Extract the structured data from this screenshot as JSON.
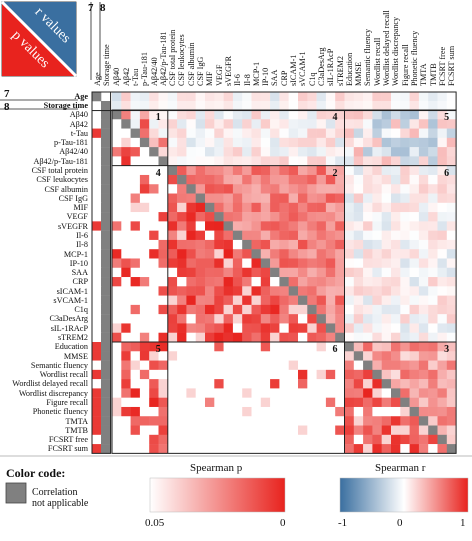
{
  "corner_legend": {
    "upper": "r values",
    "lower": "p values"
  },
  "top_markers": [
    "7",
    "8"
  ],
  "side_markers": [
    "7",
    "8"
  ],
  "top_fixed_labels": [
    "Storage time",
    "Age"
  ],
  "variables": [
    "Age",
    "Storage time",
    "Aβ40",
    "Aβ42",
    "t-Tau",
    "p-Tau-181",
    "Aβ42/40",
    "Aβ42/p-Tau-181",
    "CSF total protein",
    "CSF leukocytes",
    "CSF albumin",
    "CSF IgG",
    "MIF",
    "VEGF",
    "sVEGFR",
    "Il-6",
    "Il-8",
    "MCP-1",
    "IP-10",
    "SAA",
    "CRP",
    "sICAM-1",
    "sVCAM-1",
    "C1q",
    "C3aDesArg",
    "sIL-1RAcP",
    "sTREM2",
    "Education",
    "MMSE",
    "Semantic fluency",
    "Wordlist recall",
    "Wordlist delayed recall",
    "Wordlist discrepancy",
    "Figure recall",
    "Phonetic fluency",
    "TMTA",
    "TMTB",
    "FCSRT free",
    "FCSRT sum"
  ],
  "column_labels": [
    "Aβ40",
    "Aβ42",
    "t-Tau",
    "p-Tau-181",
    "Aβ42/40",
    "Aβ42/p-Tau-181",
    "CSF total protein",
    "CSF leukocytes",
    "CSF albumin",
    "CSF IgG",
    "MIF",
    "VEGF",
    "sVEGFR",
    "Il-6",
    "Il-8",
    "MCP-1",
    "IP-10",
    "SAA",
    "CRP",
    "sICAM-1",
    "sVCAM-1",
    "C1q",
    "C3aDesArg",
    "sIL-1RAcP",
    "sTREM2",
    "Education",
    "MMSE",
    "Semantic fluency",
    "Wordlist recall",
    "Wordlist delayed recall",
    "Wordlist discrepancy",
    "Figure recall",
    "Phonetic fluency",
    "TMTA",
    "TMTB",
    "FCSRT free",
    "FCSRT sum"
  ],
  "block_labels": [
    "1",
    "2",
    "3",
    "4",
    "4",
    "5",
    "5",
    "6",
    "6"
  ],
  "legend": {
    "title": "Color code:",
    "na_label": "Correlation not applicable",
    "p_title": "Spearman p",
    "p_ticks": [
      "0.05",
      "0"
    ],
    "r_title": "Spearman r",
    "r_ticks": [
      "-1",
      "0",
      "1"
    ]
  },
  "colors": {
    "red": "#e8231e",
    "blue": "#3a6fa0",
    "na": "#808080",
    "line": "#222222"
  },
  "chart_data": {
    "type": "heatmap",
    "title": "",
    "upper_triangle": "Spearman r",
    "lower_triangle": "Spearman p",
    "p_range": [
      0,
      0.05
    ],
    "r_range": [
      -1,
      1
    ]
  }
}
